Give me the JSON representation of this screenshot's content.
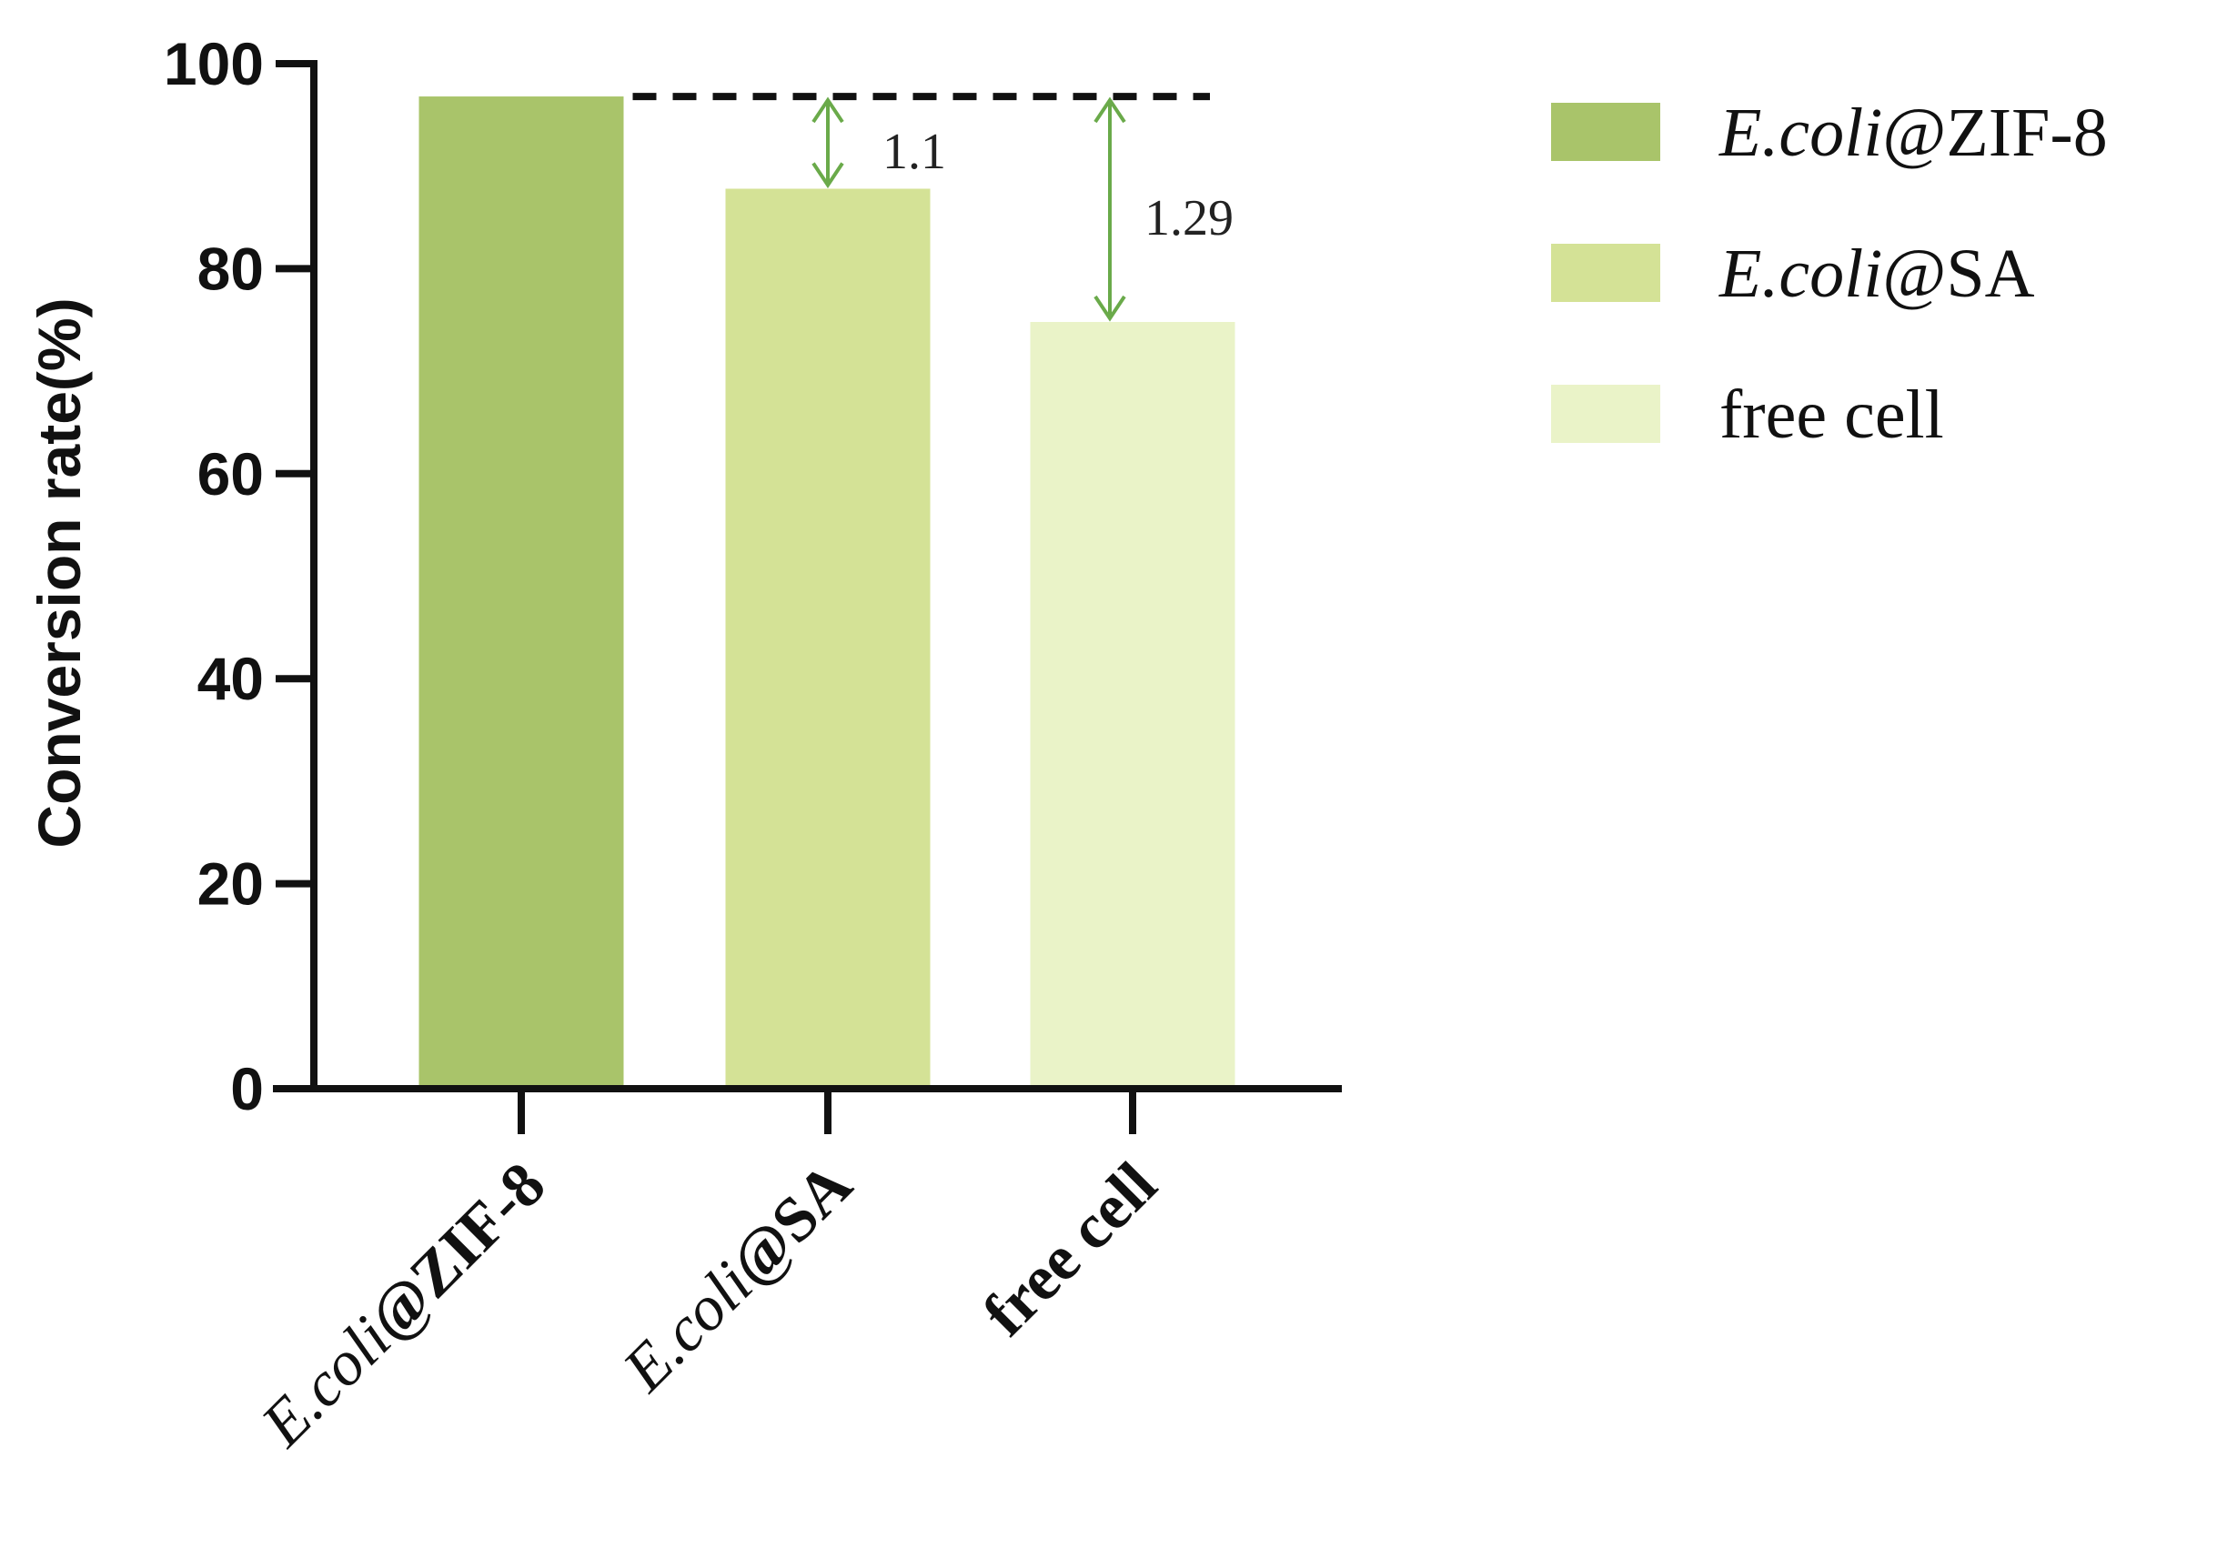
{
  "chart_data": {
    "type": "bar",
    "ylabel": "Conversion rate(%)",
    "ylim": [
      0,
      100
    ],
    "yticks": [
      0,
      20,
      40,
      60,
      80,
      100
    ],
    "categories": [
      {
        "prefix": "E.coli",
        "suffix": "@ZIF-8",
        "label": "E.coli@ZIF-8"
      },
      {
        "prefix": "E.coli",
        "suffix": "@SA",
        "label": "E.coli@SA"
      },
      {
        "prefix": "",
        "suffix": "free cell",
        "label": "free cell"
      }
    ],
    "values": [
      96.8,
      87.8,
      74.8
    ],
    "colors": [
      "#a9c46a",
      "#d4e296",
      "#eaf3c8"
    ],
    "reference_line": {
      "value": 96.8,
      "style": "dashed",
      "color": "#111111"
    },
    "annotations": [
      {
        "from": 96.8,
        "to": 87.8,
        "category_index": 1,
        "text": "1.1",
        "color": "#6aaa4a"
      },
      {
        "from": 96.8,
        "to": 74.8,
        "category_index": 2,
        "text": "1.29",
        "color": "#6aaa4a"
      }
    ],
    "legend": {
      "placement": "top-right",
      "entries": [
        {
          "prefix": "E.coli",
          "suffix": "@ZIF-8",
          "color": "#a9c46a"
        },
        {
          "prefix": "E.coli",
          "suffix": "@SA",
          "color": "#d4e296"
        },
        {
          "prefix": "",
          "suffix": "free cell",
          "color": "#eaf3c8"
        }
      ]
    },
    "grid": false
  }
}
